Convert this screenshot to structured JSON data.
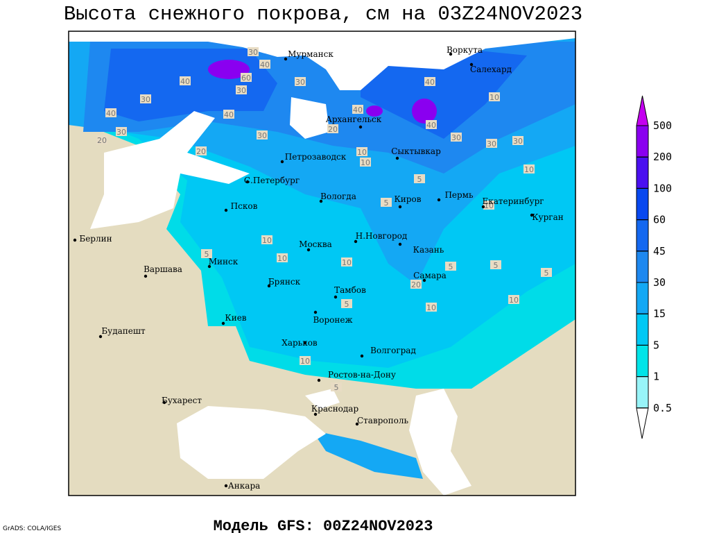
{
  "title": "Высота снежного покрова, см на 03Z24NOV2023",
  "footer": "Модель GFS: 00Z24NOV2023",
  "credit": "GrADS: COLA/IGES",
  "map": {
    "cities": [
      "Мурманск",
      "Воркута",
      "Салехард",
      "Архангельск",
      "Петрозаводск",
      "Сыктывкар",
      "С.Петербург",
      "Вологда",
      "Киров",
      "Пермь",
      "Екатеринбург",
      "Курган",
      "Псков",
      "Н.Новгород",
      "Москва",
      "Казань",
      "Берлин",
      "Минск",
      "Варшава",
      "Брянск",
      "Тамбов",
      "Самара",
      "Воронеж",
      "Киев",
      "Харьков",
      "Будапешт",
      "Волгоград",
      "Ростов-на-Дону",
      "Бухарест",
      "Краснодар",
      "Ставрополь",
      "Анкара"
    ],
    "contour_labels": [
      30,
      40,
      60,
      30,
      40,
      30,
      40,
      30,
      20,
      40,
      30,
      20,
      40,
      30,
      40,
      40,
      30,
      20,
      10,
      30,
      10,
      30,
      10,
      5,
      10,
      10,
      5,
      10,
      5,
      10,
      20,
      10,
      10,
      5,
      5,
      10,
      5,
      5,
      10,
      5
    ]
  },
  "legend": {
    "levels": [
      0.5,
      1,
      5,
      15,
      30,
      45,
      60,
      100,
      200,
      500
    ],
    "colors": [
      "#98f4f8",
      "#00e4e8",
      "#00c8f4",
      "#14a8f4",
      "#1e88f0",
      "#1468f0",
      "#0848f0",
      "#4a10f0",
      "#8a00f0",
      "#c400f0"
    ]
  }
}
